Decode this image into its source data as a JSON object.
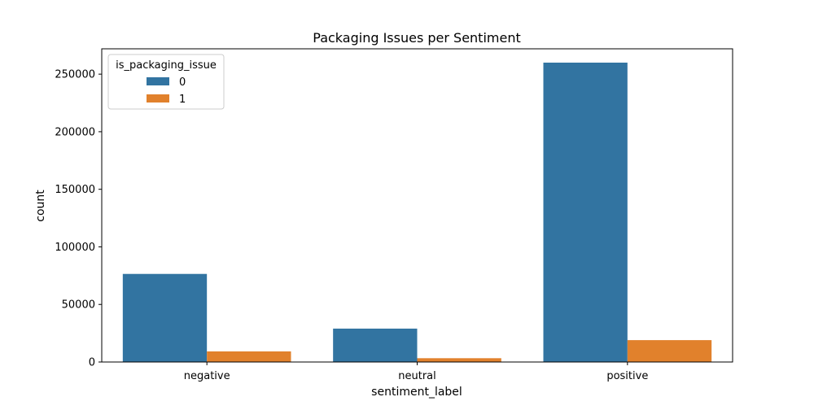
{
  "chart_data": {
    "type": "bar",
    "title": "Packaging Issues per Sentiment",
    "xlabel": "sentiment_label",
    "ylabel": "count",
    "categories": [
      "negative",
      "neutral",
      "positive"
    ],
    "series": [
      {
        "name": "0",
        "values": [
          76500,
          29000,
          260000
        ],
        "color": "#3274a1"
      },
      {
        "name": "1",
        "values": [
          9200,
          3300,
          19000
        ],
        "color": "#e1812c"
      }
    ],
    "ylim": [
      0,
      272000
    ],
    "yticks": [
      0,
      50000,
      100000,
      150000,
      200000,
      250000
    ],
    "ytick_labels": [
      "0",
      "50000",
      "100000",
      "150000",
      "200000",
      "250000"
    ],
    "grid": false,
    "legend": {
      "title": "is_packaging_issue",
      "placement": "top-left"
    }
  }
}
